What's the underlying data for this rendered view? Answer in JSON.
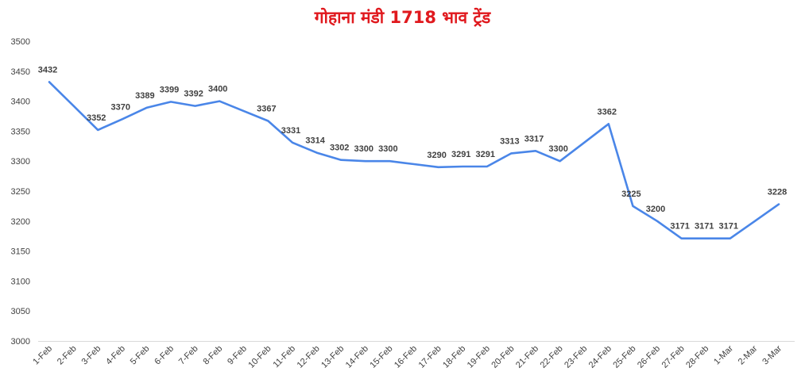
{
  "chart_data": {
    "type": "line",
    "title": "गोहाना मंडी 1718 भाव ट्रेंड",
    "categories": [
      "1-Feb",
      "2-Feb",
      "3-Feb",
      "4-Feb",
      "5-Feb",
      "6-Feb",
      "7-Feb",
      "8-Feb",
      "9-Feb",
      "10-Feb",
      "11-Feb",
      "12-Feb",
      "13-Feb",
      "14-Feb",
      "15-Feb",
      "16-Feb",
      "17-Feb",
      "18-Feb",
      "19-Feb",
      "20-Feb",
      "21-Feb",
      "22-Feb",
      "23-Feb",
      "24-Feb",
      "25-Feb",
      "26-Feb",
      "27-Feb",
      "28-Feb",
      "1-Mar",
      "2-Mar",
      "3-Mar"
    ],
    "values": [
      3432,
      3392,
      3352,
      3370,
      3389,
      3399,
      3392,
      3400,
      3383.5,
      3367,
      3331,
      3314,
      3302,
      3300,
      3300,
      3295,
      3290,
      3291,
      3291,
      3313,
      3317,
      3300,
      3331,
      3362,
      3225,
      3200,
      3171,
      3171,
      3171,
      3199.5,
      3228
    ],
    "labeled": [
      true,
      false,
      true,
      true,
      true,
      true,
      true,
      true,
      false,
      true,
      true,
      true,
      true,
      true,
      true,
      false,
      true,
      true,
      true,
      true,
      true,
      true,
      false,
      true,
      true,
      true,
      true,
      true,
      true,
      false,
      true
    ],
    "ylim": [
      3000,
      3500
    ],
    "yticks": [
      3000,
      3050,
      3100,
      3150,
      3200,
      3250,
      3300,
      3350,
      3400,
      3450,
      3500
    ],
    "grid": false,
    "line_color": "#4a86e8",
    "title_color": "#e0191e"
  }
}
